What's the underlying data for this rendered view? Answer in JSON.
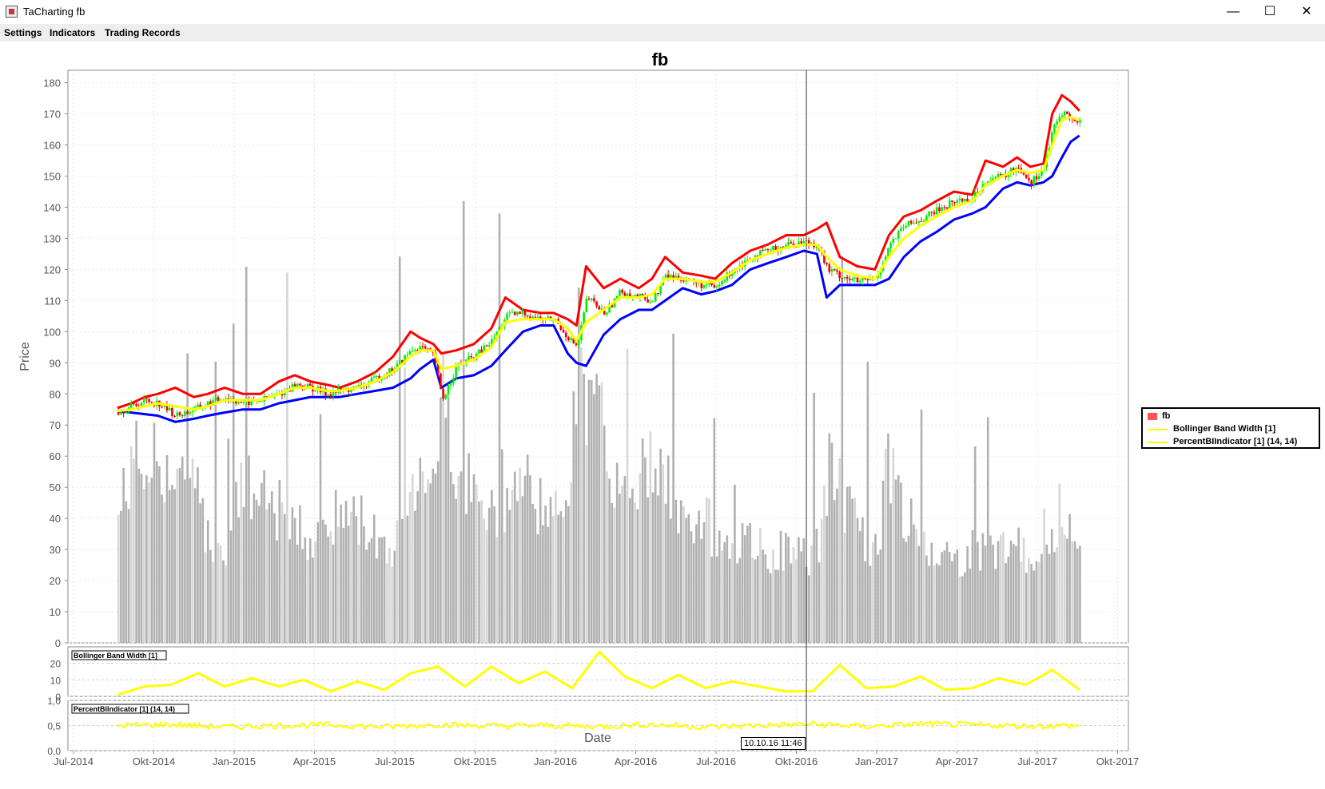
{
  "window": {
    "title": "TaCharting fb",
    "minimize_glyph": "—",
    "maximize_glyph": "☐",
    "close_glyph": "✕",
    "icon": "java-app-icon"
  },
  "menu": {
    "items": [
      "Settings",
      "Indicators",
      "Trading Records"
    ]
  },
  "legend": {
    "items": [
      "fb",
      "Bollinger Band Width [1]",
      "PercentBIIndicator [1] (14, 14)"
    ]
  },
  "crosshair_label": "10.10.16 11:46",
  "colors": {
    "candle_up": "#00ee00",
    "candle_down": "#ee0000",
    "upper_band": "#ff0000",
    "middle_band": "#ffff00",
    "lower_band": "#0000ff",
    "volume": "#b0b0b0",
    "indicator": "#ffff00"
  },
  "chart_data": [
    {
      "type": "line",
      "title": "fb",
      "xlabel": "Date",
      "ylabel": "Price",
      "ylim": [
        0,
        184
      ],
      "yticks": [
        0,
        10,
        20,
        30,
        40,
        50,
        60,
        70,
        80,
        90,
        100,
        110,
        120,
        130,
        140,
        150,
        160,
        170,
        180
      ],
      "xticks": [
        "Jul-2014",
        "Okt-2014",
        "Jan-2015",
        "Apr-2015",
        "Jul-2015",
        "Okt-2015",
        "Jan-2016",
        "Apr-2016",
        "Jul-2016",
        "Okt-2016",
        "Jan-2017",
        "Apr-2017",
        "Jul-2017",
        "Okt-2017"
      ],
      "x": [
        "2014-08-20",
        "2014-09-05",
        "2014-09-20",
        "2014-10-05",
        "2014-10-25",
        "2014-11-15",
        "2014-12-01",
        "2014-12-20",
        "2015-01-10",
        "2015-01-30",
        "2015-02-20",
        "2015-03-10",
        "2015-03-28",
        "2015-04-15",
        "2015-04-30",
        "2015-05-20",
        "2015-06-10",
        "2015-06-30",
        "2015-07-20",
        "2015-07-31",
        "2015-08-15",
        "2015-08-24",
        "2015-09-10",
        "2015-09-30",
        "2015-10-20",
        "2015-11-05",
        "2015-11-25",
        "2015-12-15",
        "2015-12-30",
        "2016-01-15",
        "2016-01-25",
        "2016-02-05",
        "2016-02-25",
        "2016-03-15",
        "2016-04-05",
        "2016-04-20",
        "2016-05-05",
        "2016-05-25",
        "2016-06-15",
        "2016-07-01",
        "2016-07-20",
        "2016-08-10",
        "2016-08-30",
        "2016-09-20",
        "2016-10-10",
        "2016-10-25",
        "2016-11-05",
        "2016-11-20",
        "2016-12-10",
        "2016-12-30",
        "2017-01-15",
        "2017-02-01",
        "2017-02-20",
        "2017-03-10",
        "2017-03-30",
        "2017-04-20",
        "2017-05-05",
        "2017-05-25",
        "2017-06-10",
        "2017-06-25",
        "2017-07-10",
        "2017-07-20",
        "2017-07-31",
        "2017-08-10",
        "2017-08-20"
      ],
      "series": [
        {
          "name": "fb",
          "values": [
            74.5,
            76,
            78,
            77,
            73,
            75,
            77,
            79,
            77,
            78,
            80,
            83,
            82,
            80,
            81,
            82,
            85,
            88,
            94,
            95,
            92,
            78,
            89,
            92,
            97,
            105,
            106,
            104,
            104,
            98,
            95,
            111,
            106,
            113,
            111,
            110,
            118,
            117,
            115,
            114,
            120,
            124,
            126,
            128,
            129,
            128,
            120,
            118,
            116,
            117,
            128,
            134,
            136,
            139,
            142,
            143,
            149,
            150,
            153,
            148,
            153,
            165,
            171,
            168,
            167
          ]
        },
        {
          "values": [
            75.5,
            77,
            79,
            80,
            82,
            79,
            80,
            82,
            80,
            80,
            84,
            86,
            84,
            83,
            82,
            84,
            87,
            92,
            100,
            98,
            96,
            93,
            94,
            96,
            101,
            111,
            107,
            106,
            106,
            104,
            102,
            121,
            114,
            117,
            114,
            117,
            124,
            119,
            118,
            117,
            122,
            126,
            128,
            131,
            131,
            133,
            135,
            124,
            121,
            120,
            131,
            137,
            139,
            142,
            145,
            144,
            155,
            153,
            156,
            153,
            154,
            170,
            176,
            174,
            171
          ]
        },
        {
          "values": [
            74.5,
            75,
            76,
            77,
            76,
            75,
            76,
            78,
            78,
            78,
            80,
            82,
            82,
            81,
            81,
            82,
            84,
            87,
            92,
            94,
            94,
            88,
            89,
            91,
            95,
            103,
            104,
            104,
            104,
            101,
            97,
            103,
            107,
            111,
            111,
            112,
            117,
            117,
            116,
            116,
            119,
            123,
            125,
            127,
            128,
            128,
            124,
            120,
            118,
            117,
            124,
            130,
            134,
            137,
            140,
            142,
            147,
            150,
            152,
            151,
            152,
            160,
            168,
            169,
            168
          ]
        },
        {
          "values": [
            74.5,
            74,
            73.5,
            73,
            71,
            72,
            73,
            74,
            75,
            75,
            77,
            78,
            79,
            79,
            79,
            80,
            81,
            82,
            85,
            88,
            91,
            82,
            85,
            86,
            89,
            94,
            100,
            102,
            102,
            93,
            90,
            89,
            99,
            104,
            107,
            107,
            110,
            114,
            112,
            113,
            115,
            120,
            122,
            124,
            126,
            125,
            111,
            115,
            115,
            115,
            117,
            124,
            129,
            132,
            136,
            138,
            140,
            146,
            148,
            147,
            148,
            150,
            156,
            161,
            163
          ]
        },
        {
          "name": "Volume",
          "values": [
            40,
            60,
            55,
            60,
            50,
            48,
            35,
            30,
            52,
            45,
            42,
            38,
            34,
            36,
            42,
            40,
            35,
            30,
            48,
            60,
            55,
            80,
            60,
            45,
            40,
            48,
            52,
            45,
            38,
            55,
            95,
            80,
            65,
            45,
            52,
            60,
            50,
            40,
            40,
            35,
            30,
            32,
            28,
            30,
            28,
            30,
            55,
            50,
            35,
            30,
            60,
            40,
            35,
            30,
            26,
            30,
            28,
            32,
            30,
            28,
            30,
            35,
            45,
            30,
            25
          ]
        }
      ]
    },
    {
      "type": "line",
      "title": "Bollinger Band Width [1]",
      "ylim": [
        0,
        30
      ],
      "yticks": [
        0,
        10,
        20
      ],
      "x": [
        "2014-08-20",
        "2014-09-20",
        "2014-10-20",
        "2014-11-20",
        "2014-12-20",
        "2015-01-20",
        "2015-02-20",
        "2015-03-20",
        "2015-04-20",
        "2015-05-20",
        "2015-06-20",
        "2015-07-20",
        "2015-08-20",
        "2015-09-20",
        "2015-10-20",
        "2015-11-20",
        "2015-12-20",
        "2016-01-20",
        "2016-02-20",
        "2016-03-20",
        "2016-04-20",
        "2016-05-20",
        "2016-06-20",
        "2016-07-20",
        "2016-08-20",
        "2016-09-20",
        "2016-10-20",
        "2016-11-20",
        "2016-12-20",
        "2017-01-20",
        "2017-02-20",
        "2017-03-20",
        "2017-04-20",
        "2017-05-20",
        "2017-06-20",
        "2017-07-20",
        "2017-08-20"
      ],
      "values": [
        1,
        6,
        7,
        14,
        6,
        11,
        6,
        10,
        3,
        9,
        4,
        14,
        18,
        6,
        18,
        8,
        15,
        5,
        27,
        12,
        5,
        13,
        5,
        9,
        6,
        3,
        3,
        19,
        5,
        6,
        12,
        4,
        5,
        11,
        7,
        16,
        4
      ]
    },
    {
      "type": "line",
      "title": "PercentBIIndicator [1] (14, 14)",
      "ylim": [
        0,
        1
      ],
      "yticks": [
        "0,0",
        "0,5",
        "1,0"
      ],
      "x": [
        "2014-08-20",
        "2014-10-20",
        "2014-12-20",
        "2015-02-20",
        "2015-04-20",
        "2015-06-20",
        "2015-08-20",
        "2015-10-20",
        "2015-12-20",
        "2016-02-20",
        "2016-04-20",
        "2016-06-20",
        "2016-08-20",
        "2016-10-20",
        "2016-12-20",
        "2017-02-20",
        "2017-04-20",
        "2017-06-20",
        "2017-08-20"
      ],
      "values": [
        0.5,
        0.52,
        0.47,
        0.5,
        0.51,
        0.47,
        0.52,
        0.49,
        0.5,
        0.48,
        0.52,
        0.47,
        0.5,
        0.53,
        0.48,
        0.53,
        0.51,
        0.49,
        0.5
      ]
    }
  ]
}
